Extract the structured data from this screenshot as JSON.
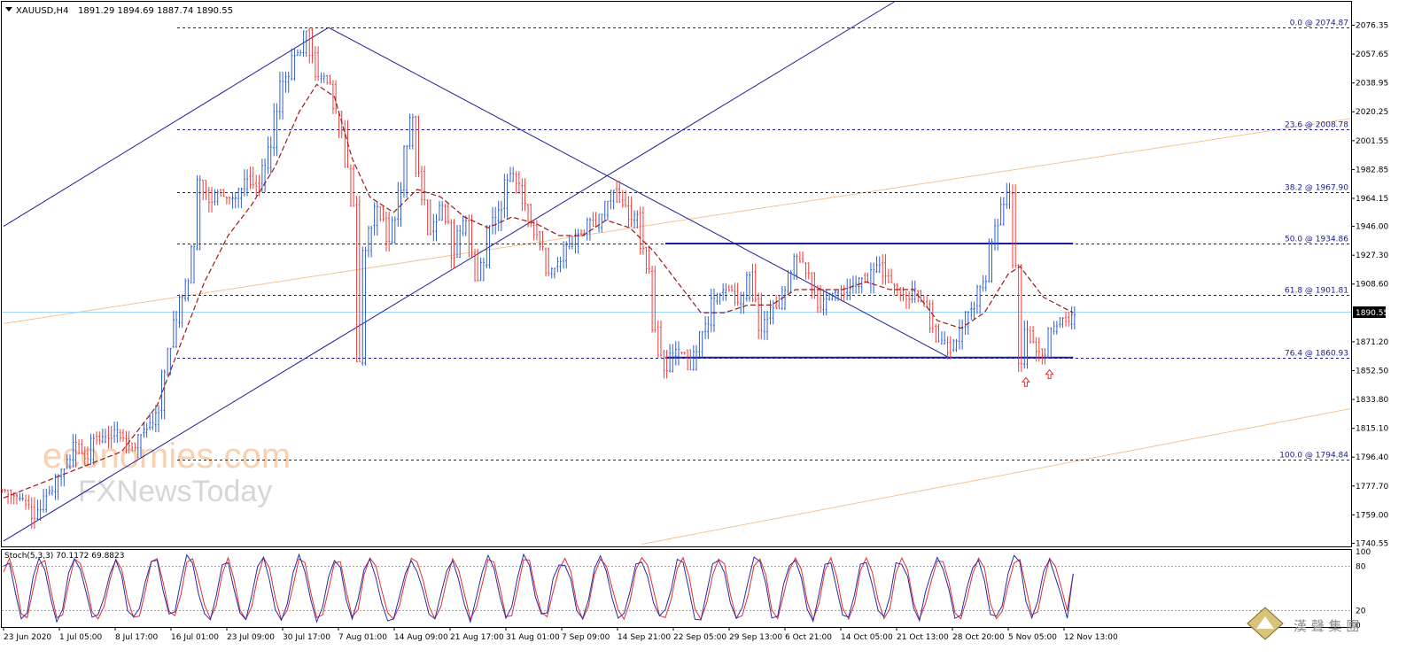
{
  "header": {
    "symbol": "XAUUSD,H4",
    "ohlc": "1891.29 1894.69 1887.74 1890.55"
  },
  "current_price_label": "1890.55",
  "colors": {
    "bull": "#2f5fd0",
    "bear": "#f23b3b",
    "ma": "#a01818",
    "trend": "#1c1c9c",
    "fib": "#1c1c8c",
    "orange": "#f5b57a",
    "pricebox": "#000000",
    "stoch_k": "#2a2aa8",
    "stoch_d": "#e03030",
    "current_line": "#9fd4ff"
  },
  "watermark": {
    "line1": "economies.com",
    "line2": "FXNewsToday"
  },
  "brand": {
    "text": "漢 聲 集 團"
  },
  "chart_data": {
    "type": "candlestick",
    "title": "XAUUSD,H4",
    "ylim": [
      1740.0,
      2090.0
    ],
    "y_ticks": [
      "2076.35",
      "2057.65",
      "2038.95",
      "2020.25",
      "2001.55",
      "1982.85",
      "1964.15",
      "1946.00",
      "1927.30",
      "1908.60",
      "1871.20",
      "1852.50",
      "1833.80",
      "1815.10",
      "1796.40",
      "1777.70",
      "1759.00",
      "1740.55"
    ],
    "x_ticks": [
      "23 Jun 2020",
      "1 Jul 05:00",
      "8 Jul 17:00",
      "16 Jul 01:00",
      "23 Jul 09:00",
      "30 Jul 17:00",
      "7 Aug 01:00",
      "14 Aug 09:00",
      "21 Aug 17:00",
      "31 Aug 01:00",
      "7 Sep 09:00",
      "14 Sep 21:00",
      "22 Sep 05:00",
      "29 Sep 13:00",
      "6 Oct 21:00",
      "14 Oct 05:00",
      "21 Oct 13:00",
      "28 Oct 20:00",
      "5 Nov 05:00",
      "12 Nov 13:00"
    ],
    "fib_levels": [
      {
        "label": "0.0 @ 2074.87",
        "value": 2074.87
      },
      {
        "label": "23.6 @ 2008.78",
        "value": 2008.78
      },
      {
        "label": "38.2 @ 1967.90",
        "value": 1967.9
      },
      {
        "label": "50.0 @ 1934.86",
        "value": 1934.86
      },
      {
        "label": "61.8 @ 1901.81",
        "value": 1901.81
      },
      {
        "label": "76.4 @ 1860.93",
        "value": 1860.93
      },
      {
        "label": "100.0 @ 1794.84",
        "value": 1794.84
      }
    ],
    "current_price": 1890.55,
    "close_path": [
      [
        0,
        1775
      ],
      [
        3,
        1768
      ],
      [
        5,
        1760
      ],
      [
        8,
        1778
      ],
      [
        10,
        1790
      ],
      [
        12,
        1805
      ],
      [
        14,
        1800
      ],
      [
        17,
        1812
      ],
      [
        19,
        1810
      ],
      [
        22,
        1805
      ],
      [
        24,
        1815
      ],
      [
        26,
        1830
      ],
      [
        28,
        1870
      ],
      [
        30,
        1900
      ],
      [
        32,
        1930
      ],
      [
        33,
        1975
      ],
      [
        35,
        1962
      ],
      [
        37,
        1970
      ],
      [
        39,
        1965
      ],
      [
        41,
        1975
      ],
      [
        43,
        1972
      ],
      [
        45,
        1998
      ],
      [
        47,
        2040
      ],
      [
        49,
        2055
      ],
      [
        51,
        2068
      ],
      [
        52,
        2060
      ],
      [
        53,
        2045
      ],
      [
        55,
        2035
      ],
      [
        57,
        2010
      ],
      [
        59,
        1960
      ],
      [
        60,
        1862
      ],
      [
        61,
        1930
      ],
      [
        63,
        1955
      ],
      [
        65,
        1940
      ],
      [
        67,
        1965
      ],
      [
        68,
        2000
      ],
      [
        69,
        2012
      ],
      [
        70,
        1980
      ],
      [
        72,
        1940
      ],
      [
        74,
        1960
      ],
      [
        76,
        1930
      ],
      [
        78,
        1950
      ],
      [
        80,
        1910
      ],
      [
        82,
        1945
      ],
      [
        84,
        1960
      ],
      [
        86,
        1985
      ],
      [
        88,
        1960
      ],
      [
        90,
        1945
      ],
      [
        92,
        1920
      ],
      [
        94,
        1925
      ],
      [
        96,
        1935
      ],
      [
        98,
        1945
      ],
      [
        100,
        1950
      ],
      [
        102,
        1960
      ],
      [
        103,
        1970
      ],
      [
        105,
        1955
      ],
      [
        107,
        1950
      ],
      [
        109,
        1920
      ],
      [
        110,
        1880
      ],
      [
        112,
        1855
      ],
      [
        114,
        1870
      ],
      [
        116,
        1855
      ],
      [
        118,
        1880
      ],
      [
        120,
        1895
      ],
      [
        122,
        1905
      ],
      [
        124,
        1895
      ],
      [
        126,
        1910
      ],
      [
        128,
        1880
      ],
      [
        130,
        1890
      ],
      [
        132,
        1905
      ],
      [
        134,
        1930
      ],
      [
        136,
        1920
      ],
      [
        138,
        1890
      ],
      [
        140,
        1905
      ],
      [
        142,
        1900
      ],
      [
        144,
        1910
      ],
      [
        146,
        1905
      ],
      [
        148,
        1925
      ],
      [
        150,
        1910
      ],
      [
        152,
        1900
      ],
      [
        154,
        1905
      ],
      [
        156,
        1895
      ],
      [
        158,
        1870
      ],
      [
        160,
        1865
      ],
      [
        162,
        1880
      ],
      [
        164,
        1895
      ],
      [
        166,
        1915
      ],
      [
        168,
        1950
      ],
      [
        170,
        1965
      ],
      [
        171,
        1920
      ],
      [
        172,
        1855
      ],
      [
        173,
        1875
      ],
      [
        175,
        1865
      ],
      [
        176,
        1860
      ],
      [
        177,
        1875
      ],
      [
        179,
        1882
      ],
      [
        181,
        1891
      ]
    ],
    "ma_path": [
      [
        0,
        1770
      ],
      [
        10,
        1785
      ],
      [
        20,
        1800
      ],
      [
        26,
        1830
      ],
      [
        30,
        1870
      ],
      [
        34,
        1910
      ],
      [
        38,
        1940
      ],
      [
        42,
        1960
      ],
      [
        46,
        1985
      ],
      [
        50,
        2020
      ],
      [
        53,
        2038
      ],
      [
        56,
        2030
      ],
      [
        59,
        1990
      ],
      [
        62,
        1965
      ],
      [
        66,
        1955
      ],
      [
        70,
        1970
      ],
      [
        74,
        1965
      ],
      [
        78,
        1952
      ],
      [
        82,
        1945
      ],
      [
        86,
        1952
      ],
      [
        90,
        1948
      ],
      [
        94,
        1940
      ],
      [
        98,
        1940
      ],
      [
        102,
        1950
      ],
      [
        106,
        1945
      ],
      [
        110,
        1930
      ],
      [
        114,
        1910
      ],
      [
        118,
        1890
      ],
      [
        122,
        1890
      ],
      [
        126,
        1895
      ],
      [
        130,
        1895
      ],
      [
        134,
        1905
      ],
      [
        138,
        1905
      ],
      [
        142,
        1905
      ],
      [
        146,
        1910
      ],
      [
        150,
        1905
      ],
      [
        154,
        1905
      ],
      [
        158,
        1885
      ],
      [
        162,
        1880
      ],
      [
        166,
        1890
      ],
      [
        170,
        1915
      ],
      [
        172,
        1920
      ],
      [
        176,
        1900
      ],
      [
        181,
        1890
      ]
    ],
    "trend_lines": [
      {
        "x1": 0,
        "y1": 1946,
        "x2": 55,
        "y2": 2074.87
      },
      {
        "x1": 55,
        "y1": 2074.87,
        "x2": 160,
        "y2": 1860.93
      },
      {
        "x1": 0,
        "y1": 1742,
        "x2": 163,
        "y2": 2120
      },
      {
        "x1": 112,
        "y1": 1934.86,
        "x2": 181,
        "y2": 1934.86
      },
      {
        "x1": 112,
        "y1": 1860.93,
        "x2": 181,
        "y2": 1860.93
      }
    ],
    "orange_lines": [
      {
        "x1": 0,
        "y1": 1883,
        "x2": 235,
        "y2": 2020
      },
      {
        "x1": 108,
        "y1": 1740,
        "x2": 235,
        "y2": 1833
      }
    ],
    "arrows": [
      {
        "x": 173,
        "y": 1848
      },
      {
        "x": 177,
        "y": 1853
      }
    ],
    "stochastic": {
      "label": "Stoch(5,3,3) 70.1172 69.8823",
      "levels": [
        "100",
        "80",
        "20",
        "0"
      ],
      "last_k": 70.1172,
      "last_d": 69.8823
    }
  }
}
